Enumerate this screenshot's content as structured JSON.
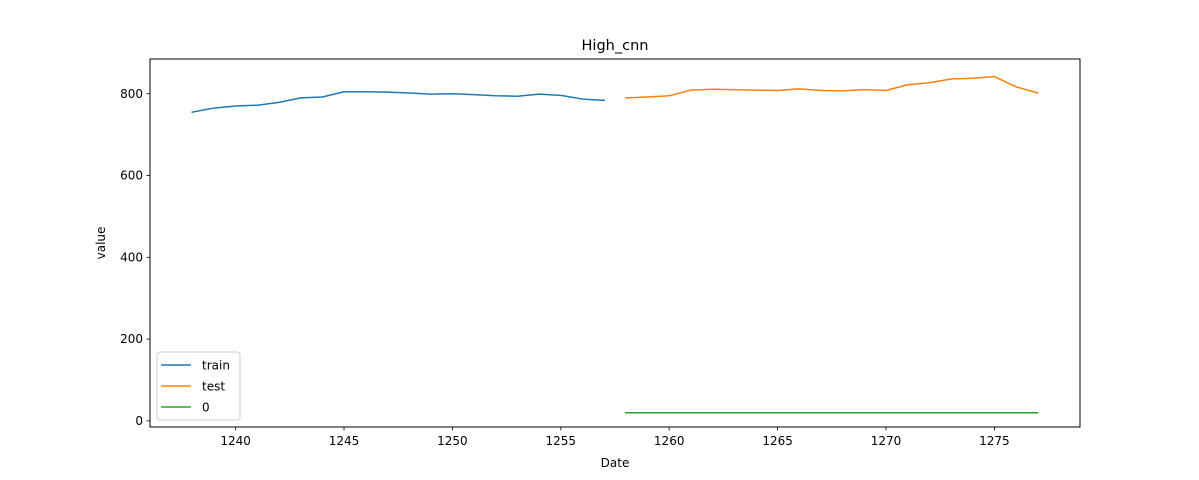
{
  "chart_data": {
    "type": "line",
    "title": "High_cnn",
    "xlabel": "Date",
    "ylabel": "value",
    "xlim": [
      1236.05,
      1278.95
    ],
    "ylim": [
      -15,
      885
    ],
    "xticks": [
      1240,
      1245,
      1250,
      1255,
      1260,
      1265,
      1270,
      1275
    ],
    "yticks": [
      0,
      200,
      400,
      600,
      800
    ],
    "grid": false,
    "legend_position": "bottom-left",
    "series": [
      {
        "name": "train",
        "color": "#1f77b4",
        "x": [
          1238,
          1239,
          1240,
          1241,
          1242,
          1243,
          1244,
          1245,
          1246,
          1247,
          1248,
          1249,
          1250,
          1251,
          1252,
          1253,
          1254,
          1255,
          1256,
          1257
        ],
        "values": [
          755,
          765,
          770,
          772,
          779,
          790,
          792,
          805,
          805,
          804,
          802,
          799,
          800,
          798,
          795,
          794,
          799,
          796,
          787,
          784
        ]
      },
      {
        "name": "test",
        "color": "#ff7f0e",
        "x": [
          1258,
          1259,
          1260,
          1261,
          1262,
          1263,
          1264,
          1265,
          1266,
          1267,
          1268,
          1269,
          1270,
          1271,
          1272,
          1273,
          1274,
          1275,
          1276,
          1277
        ],
        "values": [
          790,
          792,
          795,
          809,
          811,
          810,
          809,
          808,
          812,
          808,
          807,
          810,
          808,
          822,
          827,
          836,
          838,
          842,
          817,
          802
        ]
      },
      {
        "name": "0",
        "color": "#2ca02c",
        "x": [
          1258,
          1259,
          1260,
          1261,
          1262,
          1263,
          1264,
          1265,
          1266,
          1267,
          1268,
          1269,
          1270,
          1271,
          1272,
          1273,
          1274,
          1275,
          1276,
          1277
        ],
        "values": [
          20,
          20,
          20,
          20,
          20,
          20,
          20,
          20,
          20,
          20,
          20,
          20,
          20,
          20,
          20,
          20,
          20,
          20,
          20,
          20
        ]
      }
    ]
  }
}
